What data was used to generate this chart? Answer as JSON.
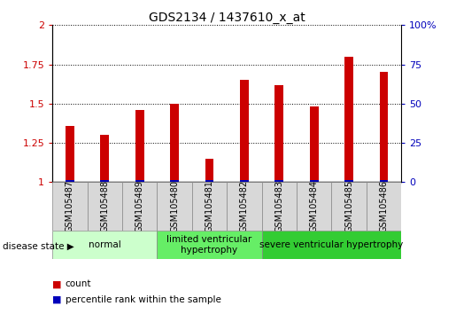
{
  "title": "GDS2134 / 1437610_x_at",
  "samples": [
    "GSM105487",
    "GSM105488",
    "GSM105489",
    "GSM105480",
    "GSM105481",
    "GSM105482",
    "GSM105483",
    "GSM105484",
    "GSM105485",
    "GSM105486"
  ],
  "count_values": [
    1.36,
    1.3,
    1.46,
    1.5,
    1.15,
    1.65,
    1.62,
    1.48,
    1.8,
    1.7
  ],
  "percentile_values": [
    0.02,
    0.02,
    0.02,
    0.02,
    0.02,
    0.02,
    0.02,
    0.02,
    0.02,
    0.02
  ],
  "bar_color_red": "#CC0000",
  "bar_color_blue": "#0000BB",
  "ylim_left": [
    1.0,
    2.0
  ],
  "ylim_right": [
    0,
    100
  ],
  "yticks_left": [
    1.0,
    1.25,
    1.5,
    1.75,
    2.0
  ],
  "yticks_right": [
    0,
    25,
    50,
    75,
    100
  ],
  "ytick_labels_left": [
    "1",
    "1.25",
    "1.5",
    "1.75",
    "2"
  ],
  "ytick_labels_right": [
    "0",
    "25",
    "50",
    "75",
    "100%"
  ],
  "groups": [
    {
      "label": "normal",
      "start": 0,
      "end": 3,
      "color": "#ccffcc"
    },
    {
      "label": "limited ventricular\nhypertrophy",
      "start": 3,
      "end": 6,
      "color": "#66ee66"
    },
    {
      "label": "severe ventricular hypertrophy",
      "start": 6,
      "end": 10,
      "color": "#33cc33"
    }
  ],
  "disease_state_label": "disease state",
  "legend_count_label": "count",
  "legend_percentile_label": "percentile rank within the sample",
  "grid_color": "#000000",
  "bar_width": 0.25,
  "sample_box_color": "#d8d8d8",
  "title_fontsize": 10,
  "tick_fontsize": 8,
  "sample_fontsize": 7,
  "group_fontsize": 7.5
}
